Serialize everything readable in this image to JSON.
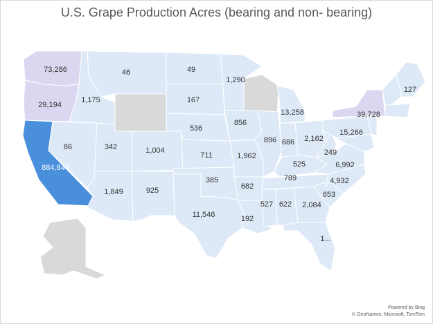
{
  "title": "U.S. Grape Production Acres (bearing and non- bearing)",
  "colors": {
    "default_state": "#dde9f7",
    "no_data": "#d9d9d9",
    "border": "#ffffff",
    "highest": "#4a8fdc",
    "purple_tint": "#dcd7f1",
    "water": "#ffffff"
  },
  "chart_data": {
    "type": "map",
    "region": "United States",
    "metric": "Grape production acres (bearing and non-bearing)",
    "states_no_data": [
      "Wyoming",
      "Wisconsin",
      "Alaska"
    ],
    "values": [
      {
        "state": "Washington",
        "value": "73,286"
      },
      {
        "state": "Oregon",
        "value": "29,194"
      },
      {
        "state": "California",
        "value": "884,844"
      },
      {
        "state": "Idaho",
        "value": "1,175"
      },
      {
        "state": "Nevada",
        "value": "86"
      },
      {
        "state": "Montana",
        "value": "46"
      },
      {
        "state": "Utah",
        "value": "342"
      },
      {
        "state": "Arizona",
        "value": "1,849"
      },
      {
        "state": "Colorado",
        "value": "1,004"
      },
      {
        "state": "New Mexico",
        "value": "925"
      },
      {
        "state": "North Dakota",
        "value": "49"
      },
      {
        "state": "South Dakota",
        "value": "167"
      },
      {
        "state": "Nebraska",
        "value": "536"
      },
      {
        "state": "Kansas",
        "value": "711"
      },
      {
        "state": "Oklahoma",
        "value": "385"
      },
      {
        "state": "Texas",
        "value": "11,546"
      },
      {
        "state": "Minnesota",
        "value": "1,290"
      },
      {
        "state": "Iowa",
        "value": "856"
      },
      {
        "state": "Missouri",
        "value": "1,962"
      },
      {
        "state": "Arkansas",
        "value": "682"
      },
      {
        "state": "Louisiana",
        "value": "192"
      },
      {
        "state": "Illinois",
        "value": "896"
      },
      {
        "state": "Michigan",
        "value": "13,258"
      },
      {
        "state": "Indiana",
        "value": "686"
      },
      {
        "state": "Ohio",
        "value": "2,162"
      },
      {
        "state": "Kentucky",
        "value": "525"
      },
      {
        "state": "Tennessee",
        "value": "789"
      },
      {
        "state": "Mississippi",
        "value": "527"
      },
      {
        "state": "Alabama",
        "value": "622"
      },
      {
        "state": "Georgia",
        "value": "2,084"
      },
      {
        "state": "Florida",
        "value": "1..."
      },
      {
        "state": "South Carolina",
        "value": "653"
      },
      {
        "state": "North Carolina",
        "value": "4,932"
      },
      {
        "state": "Virginia",
        "value": "6,992"
      },
      {
        "state": "West Virginia",
        "value": "249"
      },
      {
        "state": "Pennsylvania",
        "value": "15,266"
      },
      {
        "state": "New York",
        "value": "39,728"
      },
      {
        "state": "Maine",
        "value": "127"
      }
    ]
  },
  "attribution": {
    "powered_by": "Powered by Bing",
    "credits": "© GeoNames, Microsoft, TomTom"
  }
}
